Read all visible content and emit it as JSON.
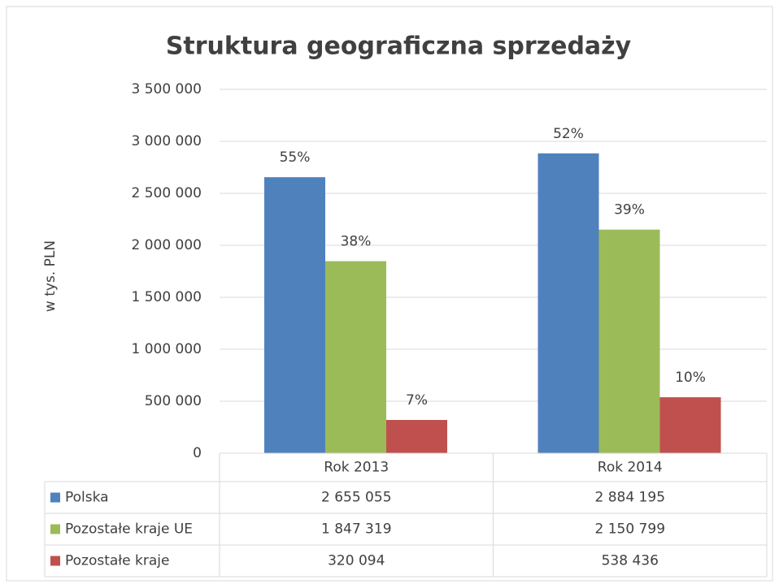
{
  "chart_data": {
    "type": "bar",
    "title": "Struktura geograficzna sprzedaży",
    "ylabel": "w tys. PLN",
    "categories": [
      "Rok 2013",
      "Rok 2014"
    ],
    "series": [
      {
        "name": "Polska",
        "color": "#4f81bd",
        "values": [
          2655055,
          2884195
        ],
        "value_labels": [
          "2 655 055",
          "2 884 195"
        ],
        "share_labels": [
          "55%",
          "52%"
        ]
      },
      {
        "name": "Pozostałe kraje UE",
        "color": "#9bbb59",
        "values": [
          1847319,
          2150799
        ],
        "value_labels": [
          "1 847 319",
          "2 150 799"
        ],
        "share_labels": [
          "38%",
          "39%"
        ]
      },
      {
        "name": "Pozostałe kraje",
        "color": "#c0504d",
        "values": [
          320094,
          538436
        ],
        "value_labels": [
          "320 094",
          "538 436"
        ],
        "share_labels": [
          "7%",
          "10%"
        ]
      }
    ],
    "ylim": [
      0,
      3500000
    ],
    "yticks": [
      0,
      {
        "value": 500000,
        "label": "500 000"
      },
      {
        "value": 1000000,
        "label": "1 000 000"
      },
      {
        "value": 1500000,
        "label": "1 500 000"
      },
      {
        "value": 2000000,
        "label": "2 000 000"
      },
      {
        "value": 2500000,
        "label": "2 500 000"
      },
      {
        "value": 3000000,
        "label": "3 000 000"
      },
      {
        "value": 3500000,
        "label": "3 500 000"
      }
    ],
    "grid": true
  }
}
